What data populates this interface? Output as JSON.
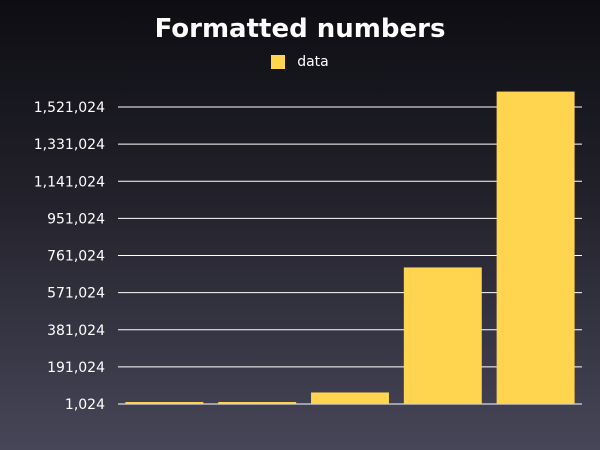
{
  "colors": {
    "bar": "#ffd54f",
    "grid": "#ffffff",
    "text": "#ffffff"
  },
  "chart_data": {
    "type": "bar",
    "title": "Formatted numbers",
    "legend_position": "top",
    "grid": true,
    "categories": [
      "",
      "",
      "",
      "",
      ""
    ],
    "series": [
      {
        "name": "data",
        "values": [
          1024,
          2048,
          60000,
          700000,
          1600000
        ]
      }
    ],
    "yticks": [
      1024,
      191024,
      381024,
      571024,
      761024,
      951024,
      1141024,
      1331024,
      1521024
    ],
    "ytick_labels": [
      "1,024",
      "191,024",
      "381,024",
      "571,024",
      "761,024",
      "951,024",
      "1,141,024",
      "1,331,024",
      "1,521,024"
    ],
    "ylim": [
      1024,
      1521024
    ]
  }
}
